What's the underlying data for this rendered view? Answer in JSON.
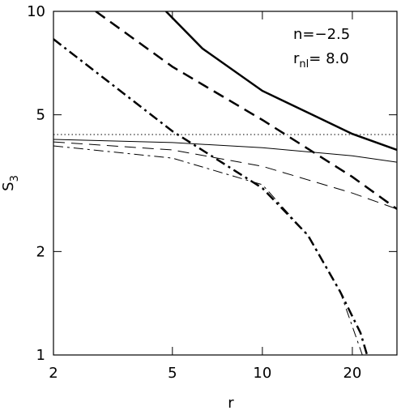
{
  "chart_data": {
    "type": "line",
    "log_x": true,
    "log_y": true,
    "x_label": "r",
    "y_label": {
      "main": "S",
      "sub": "3"
    },
    "annotations": [
      {
        "text": "n=−2.5"
      },
      {
        "text": "r",
        "sub": "nl",
        "rest": "= 8.0"
      }
    ],
    "xlim": [
      2,
      28.2
    ],
    "ylim": [
      1,
      10
    ],
    "xticks": [
      2,
      5,
      10,
      20
    ],
    "yticks": [
      1,
      2,
      5,
      10
    ],
    "series": [
      {
        "color": "#000000",
        "width": 2.5,
        "dash": "solid",
        "x": [
          4.76,
          6.3,
          10,
          20,
          28.2
        ],
        "values": [
          10,
          7.8,
          5.87,
          4.4,
          3.95
        ]
      },
      {
        "color": "#000000",
        "width": 1,
        "dash": "solid",
        "x": [
          2,
          5,
          10,
          20,
          28.2
        ],
        "values": [
          4.24,
          4.15,
          4.01,
          3.8,
          3.64
        ]
      },
      {
        "color": "#000000",
        "width": 2.5,
        "dash": "dashed",
        "x": [
          2.77,
          5,
          10,
          20,
          28.2
        ],
        "values": [
          10,
          6.9,
          4.83,
          3.3,
          2.66
        ]
      },
      {
        "color": "#000000",
        "width": 1,
        "dash": "dashed",
        "x": [
          2,
          5,
          10,
          20,
          28.2
        ],
        "values": [
          4.17,
          3.95,
          3.54,
          2.96,
          2.66
        ]
      },
      {
        "color": "#000000",
        "width": 2.5,
        "dash": "dashdot",
        "x": [
          2,
          5,
          10,
          14.2,
          18.2,
          21.3,
          22.4
        ],
        "values": [
          8.3,
          4.48,
          3.06,
          2.23,
          1.53,
          1.16,
          1
        ]
      },
      {
        "color": "#000000",
        "width": 1,
        "dash": "dashdot",
        "x": [
          2,
          5,
          10,
          14.2,
          18.2,
          21.6
        ],
        "values": [
          4.06,
          3.74,
          3.13,
          2.23,
          1.53,
          1
        ]
      },
      {
        "color": "#000000",
        "width": 1,
        "dash": "dotted",
        "x": [
          2,
          28.2
        ],
        "values": [
          4.38,
          4.38
        ]
      }
    ]
  }
}
